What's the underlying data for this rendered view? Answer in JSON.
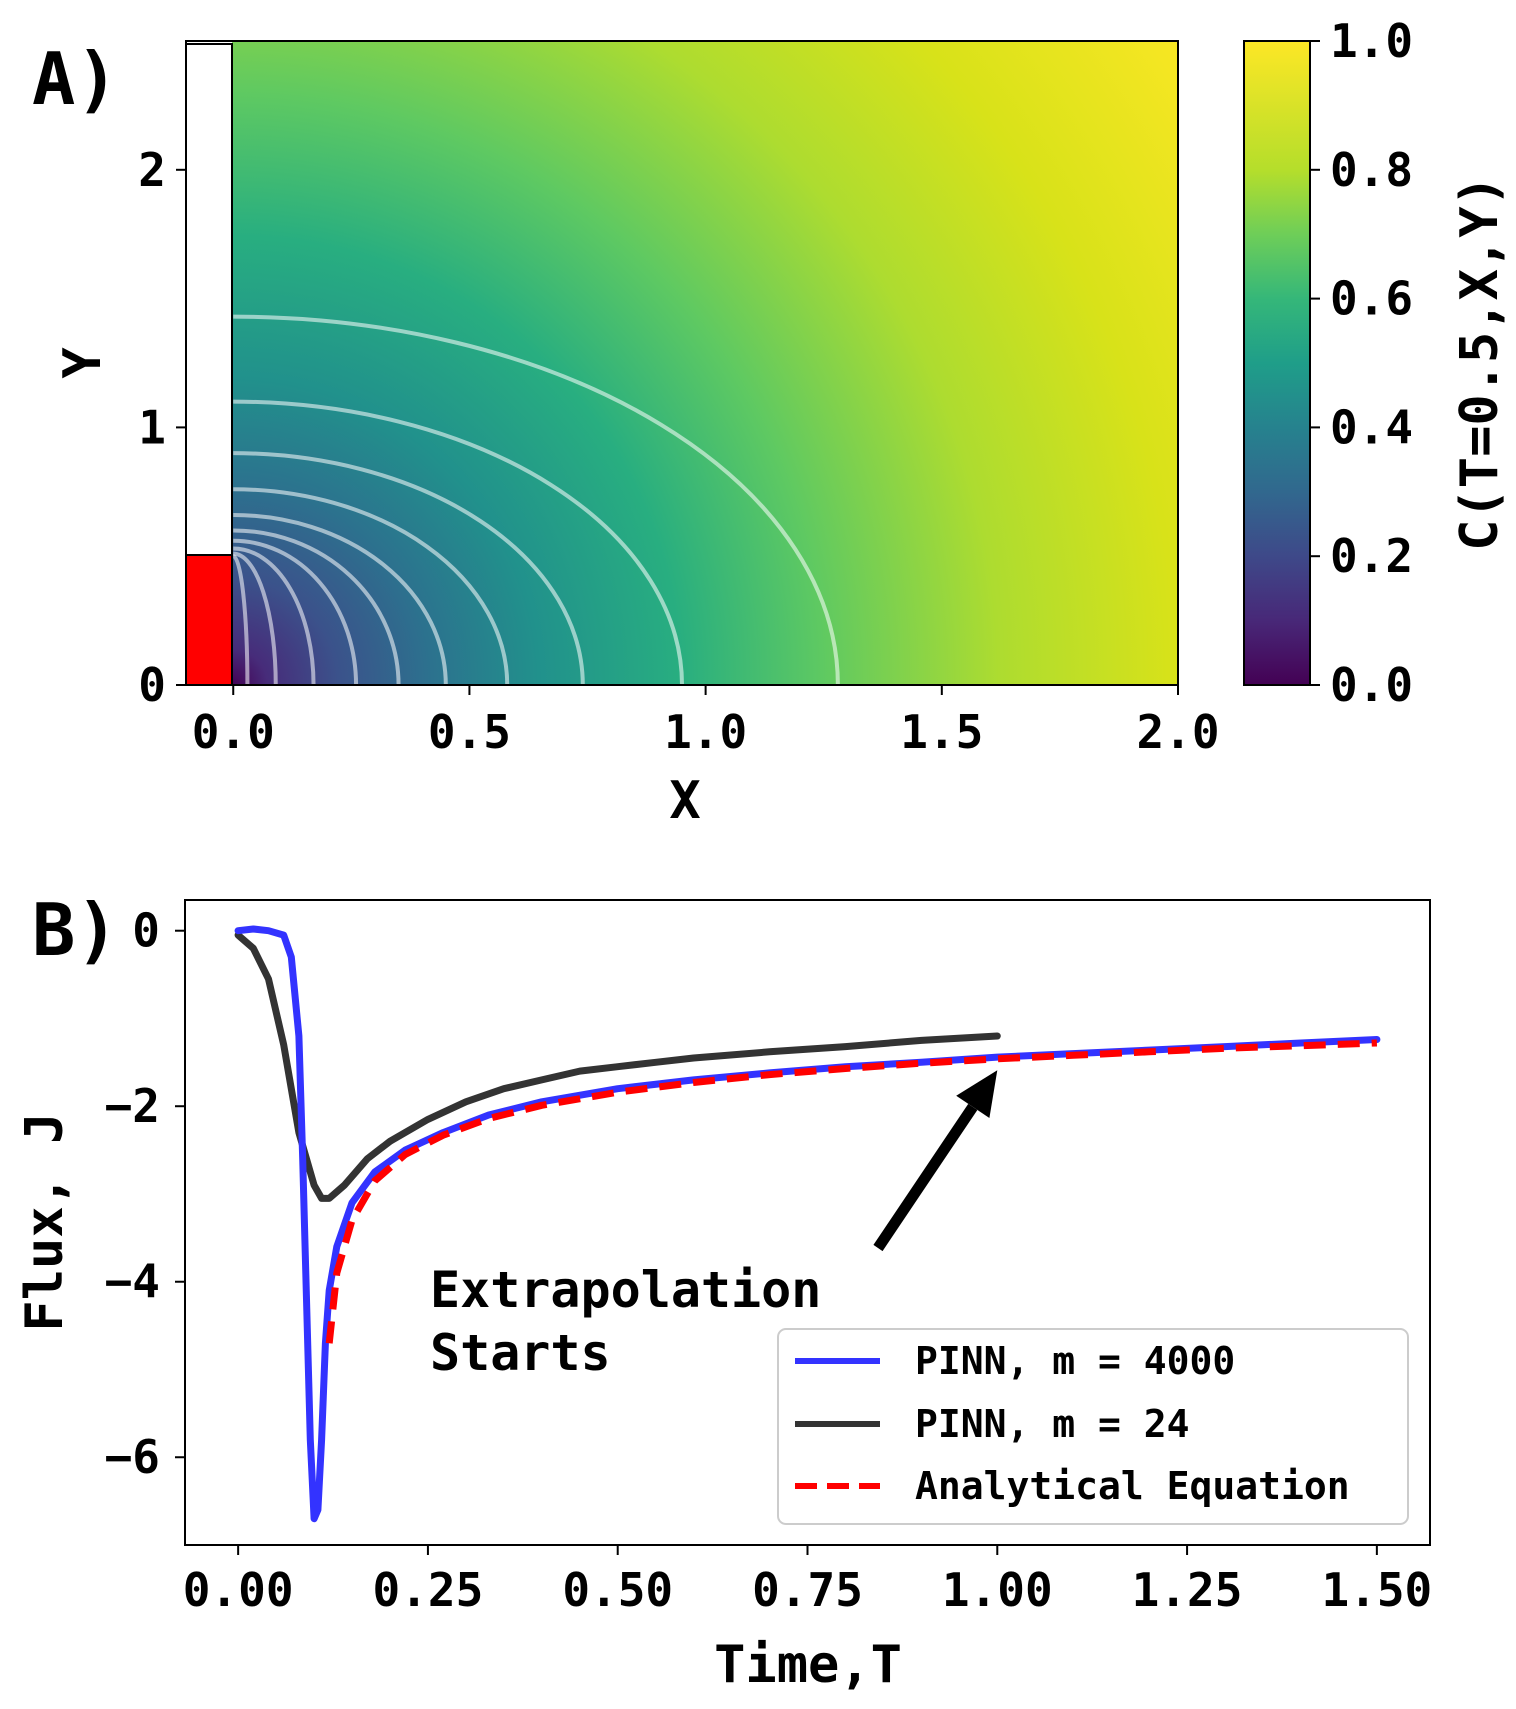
{
  "chart_data": [
    {
      "panel": "A)",
      "type": "heatmap",
      "xlabel": "X",
      "ylabel": "Y",
      "x_ticks": [
        "0.0",
        "0.5",
        "1.0",
        "1.5",
        "2.0"
      ],
      "y_ticks": [
        "0",
        "1",
        "2"
      ],
      "xlim": [
        -0.1,
        2.0
      ],
      "ylim": [
        0,
        2.5
      ],
      "colormap": "viridis",
      "colorbar": {
        "label": "C(T=0.5,X,Y)",
        "ticks": [
          "0.0",
          "0.2",
          "0.4",
          "0.6",
          "0.8",
          "1.0"
        ],
        "range": [
          0.0,
          1.0
        ]
      },
      "contour_color": "#ffffff",
      "contour_opacity": 0.55,
      "contour_levels_data_units": [
        {
          "x_intercept": 0.03,
          "y_intercept": 0.5
        },
        {
          "x_intercept": 0.09,
          "y_intercept": 0.51
        },
        {
          "x_intercept": 0.17,
          "y_intercept": 0.53
        },
        {
          "x_intercept": 0.26,
          "y_intercept": 0.56
        },
        {
          "x_intercept": 0.35,
          "y_intercept": 0.6
        },
        {
          "x_intercept": 0.45,
          "y_intercept": 0.66
        },
        {
          "x_intercept": 0.58,
          "y_intercept": 0.76
        },
        {
          "x_intercept": 0.74,
          "y_intercept": 0.9
        },
        {
          "x_intercept": 0.95,
          "y_intercept": 1.1
        },
        {
          "x_intercept": 1.28,
          "y_intercept": 1.43
        }
      ],
      "electrode": {
        "active_region": {
          "x": [
            -0.1,
            0.0
          ],
          "y": [
            0.0,
            0.5
          ],
          "color": "#ff0000"
        },
        "insulating_region": {
          "x": [
            -0.1,
            0.0
          ],
          "y": [
            0.5,
            2.5
          ],
          "color": "#ffffff"
        }
      }
    },
    {
      "panel": "B)",
      "type": "line",
      "xlabel": "Time,T",
      "ylabel": "Flux, J",
      "x_ticks": [
        "0.00",
        "0.25",
        "0.50",
        "0.75",
        "1.00",
        "1.25",
        "1.50"
      ],
      "y_ticks": [
        "0",
        "−2",
        "−4",
        "−6"
      ],
      "y_tick_values": [
        0,
        -2,
        -4,
        -6
      ],
      "xlim": [
        -0.07,
        1.57
      ],
      "ylim": [
        -7.0,
        0.35
      ],
      "legend_position": "lower right",
      "series": [
        {
          "name": "PINN, m = 4000",
          "color": "#3333ff",
          "style": "solid",
          "x": [
            0.0,
            0.02,
            0.04,
            0.06,
            0.07,
            0.08,
            0.085,
            0.09,
            0.095,
            0.1,
            0.105,
            0.11,
            0.115,
            0.12,
            0.13,
            0.15,
            0.18,
            0.22,
            0.27,
            0.33,
            0.4,
            0.5,
            0.6,
            0.7,
            0.8,
            0.9,
            1.0,
            1.1,
            1.2,
            1.3,
            1.4,
            1.5
          ],
          "y": [
            0.0,
            0.02,
            0.0,
            -0.05,
            -0.3,
            -1.2,
            -2.6,
            -4.2,
            -5.8,
            -6.7,
            -6.6,
            -5.8,
            -4.7,
            -4.1,
            -3.6,
            -3.1,
            -2.75,
            -2.5,
            -2.3,
            -2.1,
            -1.95,
            -1.8,
            -1.7,
            -1.62,
            -1.55,
            -1.5,
            -1.44,
            -1.4,
            -1.36,
            -1.32,
            -1.28,
            -1.24
          ]
        },
        {
          "name": "PINN, m = 24",
          "color": "#333333",
          "style": "solid",
          "x": [
            0.0,
            0.02,
            0.04,
            0.06,
            0.08,
            0.1,
            0.11,
            0.12,
            0.14,
            0.17,
            0.2,
            0.25,
            0.3,
            0.35,
            0.4,
            0.45,
            0.5,
            0.55,
            0.6,
            0.7,
            0.8,
            0.9,
            1.0
          ],
          "y": [
            -0.05,
            -0.2,
            -0.55,
            -1.3,
            -2.3,
            -2.9,
            -3.05,
            -3.05,
            -2.9,
            -2.6,
            -2.4,
            -2.15,
            -1.95,
            -1.8,
            -1.7,
            -1.6,
            -1.55,
            -1.5,
            -1.45,
            -1.38,
            -1.32,
            -1.25,
            -1.2
          ]
        },
        {
          "name": "Analytical Equation",
          "color": "#ff0000",
          "style": "dashed",
          "x": [
            0.12,
            0.13,
            0.15,
            0.18,
            0.22,
            0.27,
            0.33,
            0.4,
            0.5,
            0.6,
            0.7,
            0.8,
            0.9,
            1.0,
            1.1,
            1.2,
            1.3,
            1.4,
            1.5
          ],
          "y": [
            -4.7,
            -3.9,
            -3.3,
            -2.85,
            -2.55,
            -2.33,
            -2.14,
            -1.99,
            -1.84,
            -1.73,
            -1.64,
            -1.57,
            -1.51,
            -1.46,
            -1.42,
            -1.38,
            -1.34,
            -1.31,
            -1.28
          ]
        }
      ],
      "annotation": {
        "lines": [
          "Extrapolation",
          "Starts"
        ],
        "arrow_target": {
          "x": 1.0,
          "y": -1.5
        }
      }
    }
  ]
}
